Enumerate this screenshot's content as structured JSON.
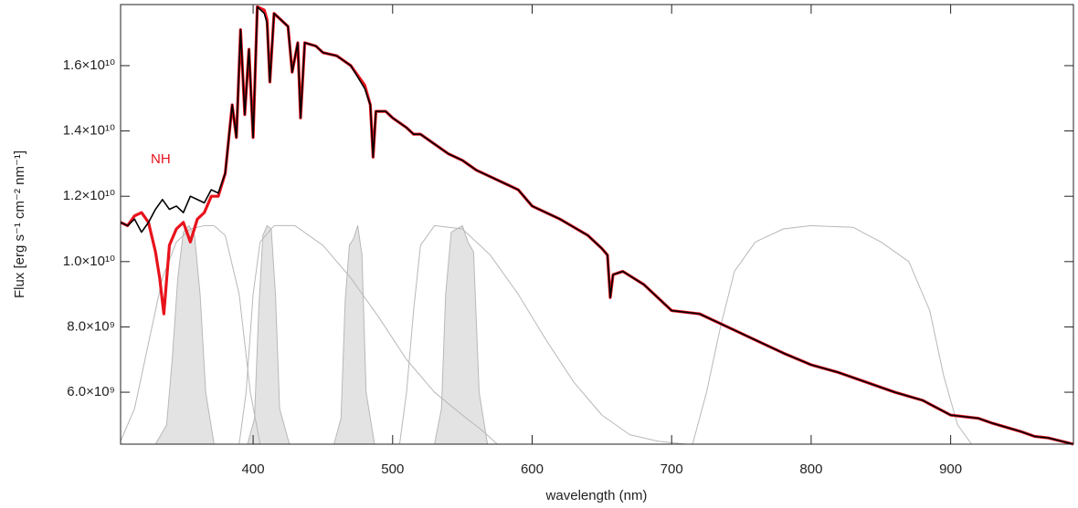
{
  "chart_data": {
    "type": "line",
    "xlabel": "wavelength (nm)",
    "ylabel": "Flux [erg s⁻¹ cm⁻² nm⁻¹]",
    "annotation": {
      "text": "NH",
      "color": "#e8121b"
    },
    "xlim": [
      305,
      988
    ],
    "ylim": [
      4410000000.0,
      17870000000.0
    ],
    "xticks": [
      400,
      500,
      600,
      700,
      800,
      900
    ],
    "yticks": [
      {
        "value": 6000000000.0,
        "label": "6.0×10⁹"
      },
      {
        "value": 8000000000.0,
        "label": "8.0×10⁹"
      },
      {
        "value": 10000000000.0,
        "label": "1.0×10¹⁰"
      },
      {
        "value": 12000000000.0,
        "label": "1.2×10¹⁰"
      },
      {
        "value": 14000000000.0,
        "label": "1.4×10¹⁰"
      },
      {
        "value": 16000000000.0,
        "label": "1.6×10¹⁰"
      }
    ],
    "series": [
      {
        "color": "#b8b8b8",
        "fill": "#e3e3e3",
        "x": [
          330,
          338,
          342,
          346,
          350,
          354,
          358,
          362,
          366,
          372
        ],
        "values": [
          4410000000.0,
          5000000000.0,
          7000000000.0,
          9500000000.0,
          10900000000.0,
          11100000000.0,
          10800000000.0,
          9000000000.0,
          6000000000.0,
          4410000000.0
        ]
      },
      {
        "color": "#b8b8b8",
        "fill": "#e3e3e3",
        "x": [
          396,
          401,
          404,
          407,
          410,
          413,
          416,
          419,
          426
        ],
        "values": [
          4410000000.0,
          5200000000.0,
          8500000000.0,
          10800000000.0,
          11100000000.0,
          11000000000.0,
          9000000000.0,
          5500000000.0,
          4410000000.0
        ]
      },
      {
        "color": "#b8b8b8",
        "fill": "#e3e3e3",
        "x": [
          458,
          463,
          466,
          469,
          472,
          475,
          478,
          481,
          487
        ],
        "values": [
          4410000000.0,
          5200000000.0,
          8800000000.0,
          10500000000.0,
          10700000000.0,
          11100000000.0,
          10200000000.0,
          6000000000.0,
          4410000000.0
        ]
      },
      {
        "color": "#b8b8b8",
        "fill": "#e3e3e3",
        "x": [
          530,
          535,
          538,
          542,
          546,
          550,
          554,
          558,
          562,
          568
        ],
        "values": [
          4410000000.0,
          5500000000.0,
          9000000000.0,
          10900000000.0,
          11000000000.0,
          11100000000.0,
          10600000000.0,
          10300000000.0,
          6000000000.0,
          4410000000.0
        ]
      },
      {
        "color": "#b8b8b8",
        "x": [
          305,
          315,
          325,
          335,
          345,
          355,
          365,
          372,
          380,
          390,
          398,
          405
        ],
        "values": [
          4500000000.0,
          5500000000.0,
          7500000000.0,
          9500000000.0,
          10600000000.0,
          11000000000.0,
          11100000000.0,
          11100000000.0,
          10800000000.0,
          9000000000.0,
          6000000000.0,
          4410000000.0
        ]
      },
      {
        "color": "#b8b8b8",
        "x": [
          390,
          395,
          400,
          405,
          415,
          430,
          450,
          470,
          490,
          510,
          530,
          550,
          565,
          575
        ],
        "values": [
          4410000000.0,
          6000000000.0,
          9000000000.0,
          10600000000.0,
          11100000000.0,
          11100000000.0,
          10500000000.0,
          9500000000.0,
          8300000000.0,
          7000000000.0,
          6000000000.0,
          5300000000.0,
          4800000000.0,
          4410000000.0
        ]
      },
      {
        "color": "#b8b8b8",
        "x": [
          505,
          510,
          515,
          520,
          530,
          550,
          570,
          590,
          610,
          630,
          650,
          670,
          690,
          710
        ],
        "values": [
          4410000000.0,
          6000000000.0,
          8500000000.0,
          10500000000.0,
          11100000000.0,
          11000000000.0,
          10200000000.0,
          9000000000.0,
          7600000000.0,
          6300000000.0,
          5300000000.0,
          4700000000.0,
          4500000000.0,
          4410000000.0
        ]
      },
      {
        "color": "#b8b8b8",
        "x": [
          715,
          725,
          735,
          745,
          760,
          780,
          800,
          830,
          850,
          870,
          885,
          895,
          905,
          915
        ],
        "values": [
          4410000000.0,
          6000000000.0,
          8000000000.0,
          9700000000.0,
          10600000000.0,
          11000000000.0,
          11100000000.0,
          11050000000.0,
          10600000000.0,
          10000000000.0,
          8500000000.0,
          6500000000.0,
          5000000000.0,
          4410000000.0
        ]
      },
      {
        "color": "#e8121b",
        "x": [
          305,
          310,
          315,
          320,
          325,
          330,
          333,
          336,
          340,
          345,
          350,
          355,
          360,
          365,
          370,
          375,
          380,
          385,
          388,
          391,
          394,
          397,
          400,
          403,
          408,
          410,
          412,
          415,
          420,
          425,
          428,
          432,
          434,
          437,
          445,
          450,
          460,
          470,
          480,
          484,
          486,
          488,
          495,
          500,
          510,
          515,
          520,
          530,
          540,
          550,
          560,
          570,
          580,
          590,
          600,
          620,
          640,
          650,
          654,
          656,
          658,
          665,
          680,
          700,
          720,
          740,
          760,
          780,
          800,
          820,
          840,
          860,
          880,
          900,
          920,
          930,
          950,
          960,
          970,
          988
        ],
        "values": [
          11200000000.0,
          11100000000.0,
          11400000000.0,
          11500000000.0,
          11200000000.0,
          10300000000.0,
          9500000000.0,
          8400000000.0,
          10500000000.0,
          11000000000.0,
          11200000000.0,
          10600000000.0,
          11300000000.0,
          11500000000.0,
          12000000000.0,
          12000000000.0,
          12700000000.0,
          14800000000.0,
          13800000000.0,
          17100000000.0,
          14500000000.0,
          16500000000.0,
          13800000000.0,
          17800000000.0,
          17700000000.0,
          17400000000.0,
          15500000000.0,
          17600000000.0,
          17400000000.0,
          17200000000.0,
          15800000000.0,
          16700000000.0,
          14400000000.0,
          16700000000.0,
          16600000000.0,
          16400000000.0,
          16300000000.0,
          16000000000.0,
          15400000000.0,
          14800000000.0,
          13200000000.0,
          14600000000.0,
          14600000000.0,
          14400000000.0,
          14100000000.0,
          13900000000.0,
          13900000000.0,
          13600000000.0,
          13300000000.0,
          13100000000.0,
          12800000000.0,
          12600000000.0,
          12400000000.0,
          12200000000.0,
          11700000000.0,
          11300000000.0,
          10800000000.0,
          10400000000.0,
          10200000000.0,
          8900000000.0,
          9600000000.0,
          9700000000.0,
          9300000000.0,
          8500000000.0,
          8400000000.0,
          8000000000.0,
          7600000000.0,
          7200000000.0,
          6840000000.0,
          6600000000.0,
          6300000000.0,
          6000000000.0,
          5750000000.0,
          5300000000.0,
          5200000000.0,
          5050000000.0,
          4800000000.0,
          4650000000.0,
          4600000000.0,
          4410000000.0
        ]
      },
      {
        "color": "#000000",
        "x": [
          305,
          310,
          315,
          320,
          325,
          330,
          335,
          340,
          345,
          350,
          355,
          360,
          365,
          370,
          375,
          380,
          385,
          388,
          391,
          394,
          397,
          400,
          403,
          408,
          410,
          412,
          415,
          420,
          425,
          428,
          432,
          434,
          437,
          445,
          450,
          460,
          470,
          480,
          484,
          486,
          488,
          495,
          500,
          510,
          515,
          520,
          530,
          540,
          550,
          560,
          570,
          580,
          590,
          600,
          620,
          640,
          650,
          654,
          656,
          658,
          665,
          680,
          700,
          720,
          740,
          760,
          780,
          800,
          820,
          840,
          860,
          880,
          900,
          920,
          930,
          950,
          960,
          970,
          988
        ],
        "values": [
          11200000000.0,
          11100000000.0,
          11300000000.0,
          10900000000.0,
          11200000000.0,
          11600000000.0,
          11900000000.0,
          11600000000.0,
          11700000000.0,
          11500000000.0,
          12000000000.0,
          11900000000.0,
          11800000000.0,
          12200000000.0,
          12100000000.0,
          12700000000.0,
          14800000000.0,
          13800000000.0,
          17100000000.0,
          14500000000.0,
          16500000000.0,
          13800000000.0,
          17800000000.0,
          17600000000.0,
          17300000000.0,
          15500000000.0,
          17600000000.0,
          17400000000.0,
          17200000000.0,
          15800000000.0,
          16700000000.0,
          14400000000.0,
          16700000000.0,
          16600000000.0,
          16400000000.0,
          16300000000.0,
          16000000000.0,
          15300000000.0,
          14800000000.0,
          13200000000.0,
          14600000000.0,
          14600000000.0,
          14400000000.0,
          14100000000.0,
          13900000000.0,
          13900000000.0,
          13600000000.0,
          13300000000.0,
          13100000000.0,
          12800000000.0,
          12600000000.0,
          12400000000.0,
          12200000000.0,
          11700000000.0,
          11300000000.0,
          10800000000.0,
          10400000000.0,
          10200000000.0,
          8900000000.0,
          9600000000.0,
          9700000000.0,
          9300000000.0,
          8500000000.0,
          8400000000.0,
          8000000000.0,
          7600000000.0,
          7200000000.0,
          6840000000.0,
          6600000000.0,
          6300000000.0,
          6000000000.0,
          5750000000.0,
          5300000000.0,
          5200000000.0,
          5050000000.0,
          4800000000.0,
          4650000000.0,
          4600000000.0,
          4410000000.0
        ]
      }
    ]
  }
}
